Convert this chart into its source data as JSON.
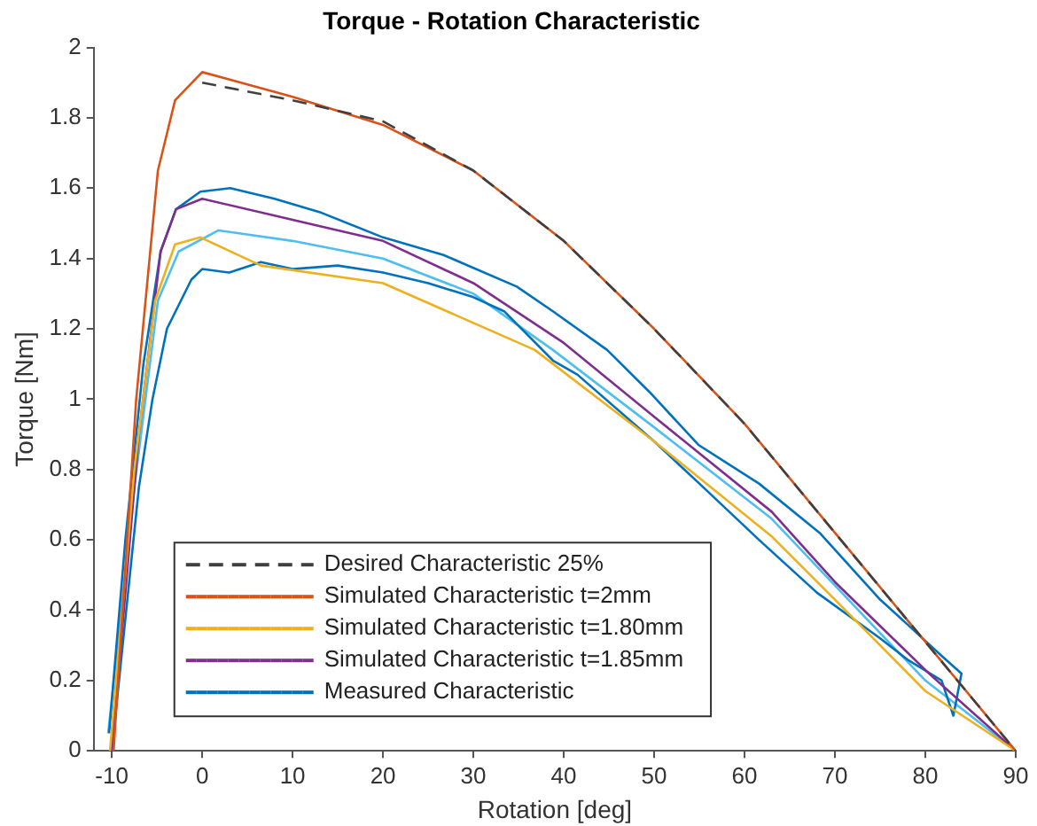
{
  "chart_data": {
    "type": "line",
    "title": "Torque - Rotation Characteristic",
    "xlabel": "Rotation [deg]",
    "ylabel": "Torque [Nm]",
    "xlim": [
      -12,
      90
    ],
    "xticks": [
      -10,
      0,
      10,
      20,
      30,
      40,
      50,
      60,
      70,
      80,
      90
    ],
    "ylim": [
      0,
      2
    ],
    "yticks": [
      0,
      0.2,
      0.4,
      0.6,
      0.8,
      1,
      1.2,
      1.4,
      1.6,
      1.8,
      2
    ],
    "grid": false,
    "legend": "bottom left",
    "marker": "none",
    "series": [
      {
        "name": "Desired Characteristic 25%",
        "color": "#404040",
        "line_style": "dashed",
        "x": [
          0,
          10,
          20,
          30,
          40,
          50,
          60,
          70,
          80,
          90
        ],
        "values": [
          1.9,
          1.85,
          1.79,
          1.65,
          1.45,
          1.2,
          0.93,
          0.62,
          0.31,
          0
        ]
      },
      {
        "name": "Simulated Characteristic t=2mm",
        "color": "#d95319",
        "line_style": "solid",
        "x": [
          -9.8,
          -7.3,
          -4.9,
          -3,
          0,
          10,
          20,
          30,
          40,
          50,
          60,
          70,
          80,
          90
        ],
        "values": [
          0,
          1,
          1.65,
          1.85,
          1.93,
          1.86,
          1.78,
          1.65,
          1.45,
          1.2,
          0.93,
          0.62,
          0.31,
          0
        ]
      },
      {
        "name": "Simulated Characteristic t=1.80mm",
        "color": "#edb120",
        "line_style": "solid",
        "x": [
          -10.2,
          -7.5,
          -5.2,
          -3,
          -0.2,
          6.5,
          20,
          36.8,
          50,
          63,
          70,
          80,
          90
        ],
        "values": [
          0,
          0.8,
          1.28,
          1.44,
          1.46,
          1.38,
          1.33,
          1.14,
          0.88,
          0.61,
          0.43,
          0.17,
          0
        ]
      },
      {
        "name": "Simulated Characteristic t=1.85mm",
        "color": "#7e2f8e",
        "line_style": "solid",
        "x": [
          -10,
          -7,
          -4.6,
          -2.9,
          0,
          10,
          20,
          30,
          40,
          50,
          63,
          70,
          80.4,
          90
        ],
        "values": [
          0,
          0.9,
          1.42,
          1.54,
          1.57,
          1.51,
          1.45,
          1.33,
          1.16,
          0.95,
          0.68,
          0.48,
          0.22,
          0
        ]
      },
      {
        "name": "Measured Characteristic",
        "color": "#0072bd",
        "line_style": "solid",
        "x": [
          -10,
          -7,
          -5.5,
          -3.9,
          -1.2,
          0,
          3,
          6.5,
          10,
          15,
          20,
          25,
          30,
          33.4,
          38.8,
          41.5,
          50,
          55,
          61.6,
          68,
          75,
          78,
          81.8,
          83.1,
          84,
          81.8,
          78,
          75,
          68.3,
          61.6,
          54.9,
          49.5,
          44.8,
          38.8,
          34.8,
          26.7,
          20,
          13.2,
          8,
          3.1,
          -0.2,
          -2.9,
          -4.6,
          -6.5,
          -8.5,
          -10.3
        ],
        "values": [
          0,
          0.75,
          1,
          1.2,
          1.34,
          1.37,
          1.36,
          1.39,
          1.37,
          1.38,
          1.36,
          1.33,
          1.29,
          1.25,
          1.11,
          1.07,
          0.88,
          0.76,
          0.6,
          0.45,
          0.32,
          0.26,
          0.2,
          0.1,
          0.22,
          0.27,
          0.36,
          0.43,
          0.62,
          0.76,
          0.87,
          1.02,
          1.14,
          1.25,
          1.32,
          1.41,
          1.46,
          1.53,
          1.57,
          1.6,
          1.59,
          1.54,
          1.42,
          1.1,
          0.6,
          0.05
        ]
      },
      {
        "color": "#4dbeee",
        "line_style": "solid",
        "x": [
          -10.4,
          -7.5,
          -4.9,
          -2.6,
          1.8,
          10,
          20,
          30,
          38.8,
          50,
          63,
          70,
          80,
          90
        ],
        "values": [
          0.05,
          0.75,
          1.28,
          1.42,
          1.48,
          1.45,
          1.4,
          1.3,
          1.14,
          0.92,
          0.66,
          0.47,
          0.2,
          0
        ]
      }
    ]
  }
}
